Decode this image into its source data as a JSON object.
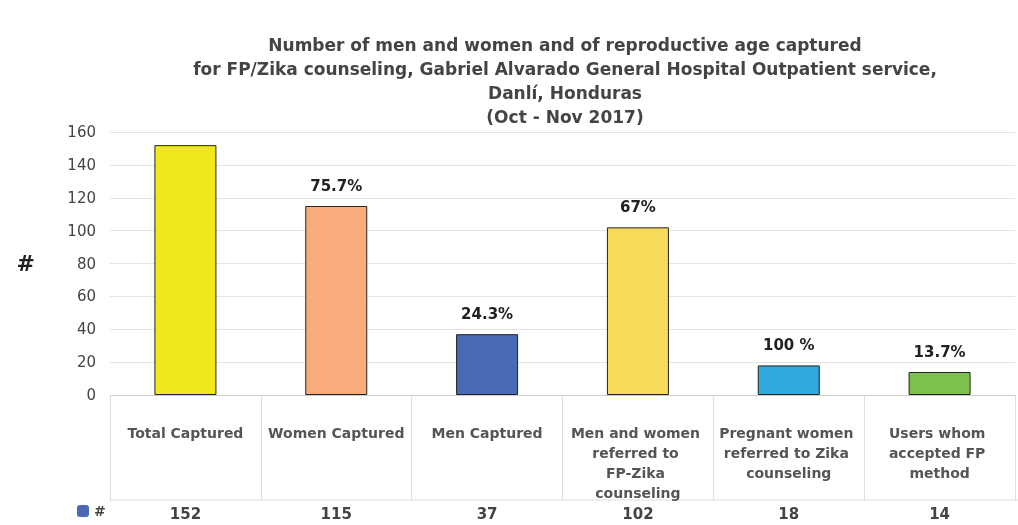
{
  "chart_data": {
    "type": "bar",
    "title": "Number of men and women and of reproductive age captured\nfor FP/Zika counseling, Gabriel Alvarado General Hospital Outpatient service,\nDanlí, Honduras\n(Oct - Nov 2017)",
    "ylabel": "#",
    "categories": [
      "Total Captured",
      "Women Captured",
      "Men Captured",
      "Men and women referred to FP-Zika counseling",
      "Pregnant women referred to Zika counseling",
      "Users whom accepted FP method"
    ],
    "series": [
      {
        "name": "#",
        "color": "#4a6ab5",
        "colors": [
          "#f0e81c",
          "#f8ac7c",
          "#4a6ab5",
          "#f9db5c",
          "#2fa9e0",
          "#7cc14a"
        ],
        "values": [
          152,
          115,
          37,
          102,
          18,
          14
        ]
      }
    ],
    "ylim": [
      0,
      160
    ],
    "yticks": [
      0,
      20,
      40,
      60,
      80,
      100,
      120,
      140,
      160
    ],
    "grid": "y",
    "legend": "bottom",
    "data_labels": true,
    "annotations": [
      {
        "text": "75.7%",
        "x": "Women Captured",
        "y": 115
      },
      {
        "text": "24.3%",
        "x": "Men Captured",
        "y": 37
      },
      {
        "text": "67%",
        "x": "Men and women referred to FP-Zika counseling",
        "y": 102
      },
      {
        "text": "100 %",
        "x": "Pregnant women referred to Zika counseling",
        "y": 18
      },
      {
        "text": "13.7%",
        "x": "Users whom accepted FP method",
        "y": 14
      }
    ]
  }
}
